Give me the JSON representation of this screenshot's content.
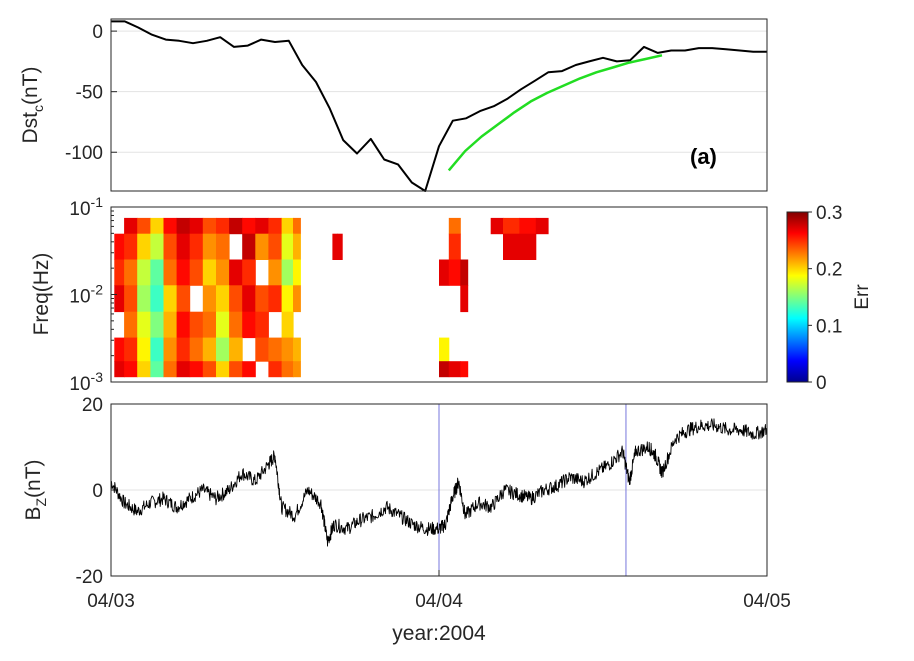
{
  "figure": {
    "xlabel": "year:2004",
    "annotation": "(a)"
  },
  "chart_data": [
    {
      "type": "line",
      "panel": "dst",
      "ylabel_main": "Dst",
      "ylabel_sub": "c",
      "ylabel_unit": "(nT)",
      "xlim": [
        0,
        2
      ],
      "ylim": [
        -132,
        10
      ],
      "yticks": [
        0,
        -50,
        -100
      ],
      "ytick_labels": [
        "0",
        "-50",
        "-100"
      ],
      "grid": true,
      "series": [
        {
          "name": "Dst_c",
          "color": "#000000",
          "x": [
            0.0,
            0.042,
            0.083,
            0.125,
            0.167,
            0.208,
            0.25,
            0.292,
            0.333,
            0.375,
            0.417,
            0.458,
            0.5,
            0.542,
            0.583,
            0.625,
            0.667,
            0.708,
            0.75,
            0.792,
            0.833,
            0.875,
            0.917,
            0.958,
            1.0,
            1.042,
            1.083,
            1.125,
            1.167,
            1.208,
            1.25,
            1.292,
            1.333,
            1.375,
            1.417,
            1.458,
            1.5,
            1.542,
            1.583,
            1.625,
            1.667,
            1.708,
            1.75,
            1.792,
            1.833,
            1.875,
            1.917,
            1.958,
            2.0
          ],
          "values": [
            8,
            8,
            3,
            -3,
            -7,
            -8,
            -10,
            -8,
            -5,
            -13,
            -12,
            -7,
            -9,
            -8,
            -28,
            -42,
            -64,
            -90,
            -101,
            -89,
            -106,
            -110,
            -125,
            -132,
            -95,
            -74,
            -72,
            -66,
            -62,
            -56,
            -48,
            -41,
            -34,
            -33,
            -28,
            -25,
            -22,
            -25,
            -24,
            -13,
            -18,
            -16,
            -16,
            -14,
            -14,
            -15,
            -16,
            -17,
            -17
          ]
        },
        {
          "name": "fit",
          "color": "#22dd22",
          "x": [
            1.03,
            1.08,
            1.13,
            1.18,
            1.23,
            1.28,
            1.33,
            1.38,
            1.43,
            1.48,
            1.53,
            1.58,
            1.63,
            1.68
          ],
          "values": [
            -115,
            -99,
            -87,
            -77,
            -67,
            -58,
            -51,
            -45,
            -39,
            -34,
            -30,
            -26,
            -23,
            -20
          ]
        }
      ]
    },
    {
      "type": "heatmap",
      "panel": "spectrum",
      "ylabel": "Freq(Hz)",
      "yscale": "log",
      "ylim": [
        0.001,
        0.1
      ],
      "ytick_base": "10",
      "ytick_exponents": [
        "-1",
        "-2",
        "-3"
      ],
      "colorbar": {
        "label": "Err",
        "range": [
          0,
          0.3
        ],
        "ticks": [
          "0",
          "0.1",
          "0.2",
          "0.3"
        ]
      },
      "y_levels": [
        0.07,
        0.035,
        0.018,
        0.009,
        0.0045,
        0.0023,
        0.0013
      ],
      "segments": [
        {
          "x": [
            0.02,
            0.06,
            0.1,
            0.14,
            0.18,
            0.22,
            0.26,
            0.3,
            0.34,
            0.38,
            0.42,
            0.46,
            0.5,
            0.54,
            0.57
          ],
          "values": [
            [
              null,
              0.27,
              0.24,
              0.2,
              0.26,
              0.28,
              0.27,
              0.24,
              0.25,
              0.28,
              0.26,
              0.27,
              0.25,
              0.2,
              0.23
            ],
            [
              0.26,
              0.25,
              0.2,
              0.17,
              0.24,
              0.27,
              0.25,
              0.22,
              0.23,
              null,
              0.28,
              0.22,
              0.24,
              0.18,
              0.21
            ],
            [
              0.25,
              0.23,
              0.17,
              0.14,
              0.23,
              0.26,
              0.24,
              0.2,
              0.22,
              0.27,
              0.25,
              null,
              0.22,
              0.16,
              0.19
            ],
            [
              0.27,
              0.24,
              0.16,
              0.13,
              0.2,
              0.24,
              null,
              0.22,
              0.2,
              0.24,
              0.27,
              0.24,
              0.25,
              0.19,
              0.22
            ],
            [
              null,
              0.23,
              0.18,
              0.15,
              0.21,
              0.26,
              0.24,
              0.23,
              0.18,
              0.23,
              0.26,
              0.25,
              null,
              0.2,
              null
            ],
            [
              0.26,
              0.25,
              0.19,
              0.13,
              0.22,
              0.25,
              0.23,
              0.21,
              0.16,
              0.21,
              null,
              0.24,
              0.23,
              0.22,
              0.21
            ],
            [
              0.27,
              0.26,
              0.2,
              0.14,
              0.23,
              0.27,
              0.26,
              0.24,
              0.2,
              0.24,
              0.26,
              null,
              0.25,
              0.23,
              0.22
            ]
          ]
        },
        {
          "x": [
            0.68,
            0.7
          ],
          "values": [
            [
              null,
              null
            ],
            [
              0.27,
              0.27
            ],
            [
              null,
              null
            ],
            [
              null,
              null
            ],
            [
              null,
              null
            ],
            [
              null,
              null
            ],
            [
              null,
              null
            ]
          ]
        },
        {
          "x": [
            1.01,
            1.05,
            1.08
          ],
          "values": [
            [
              null,
              0.23,
              null
            ],
            [
              null,
              0.25,
              null
            ],
            [
              0.27,
              0.26,
              0.28
            ],
            [
              null,
              null,
              0.27
            ],
            [
              null,
              null,
              null
            ],
            [
              0.19,
              null,
              null
            ],
            [
              0.28,
              0.27,
              0.26
            ]
          ]
        },
        {
          "x": [
            1.17,
            1.22,
            1.27,
            1.32
          ],
          "values": [
            [
              0.27,
              0.25,
              0.26,
              0.27
            ],
            [
              null,
              0.27,
              0.27,
              null
            ],
            [
              null,
              null,
              null,
              null
            ],
            [
              null,
              null,
              null,
              null
            ],
            [
              null,
              null,
              null,
              null
            ],
            [
              null,
              null,
              null,
              null
            ],
            [
              null,
              null,
              null,
              null
            ]
          ]
        }
      ]
    },
    {
      "type": "line",
      "panel": "bz",
      "ylabel_main": "B",
      "ylabel_sub": "Z",
      "ylabel_unit": "(nT)",
      "xlim": [
        0,
        2
      ],
      "ylim": [
        -20,
        20
      ],
      "yticks": [
        20,
        0,
        -20
      ],
      "ytick_labels": [
        "20",
        "0",
        "-20"
      ],
      "xtick_labels": [
        "04/03",
        "04/04",
        "04/05"
      ],
      "grid": true,
      "vlines": [
        1.0,
        1.57
      ],
      "series": [
        {
          "name": "Bz",
          "color": "#000000",
          "x": [
            0.0,
            0.04,
            0.08,
            0.12,
            0.16,
            0.2,
            0.24,
            0.28,
            0.32,
            0.36,
            0.4,
            0.44,
            0.48,
            0.5,
            0.52,
            0.56,
            0.6,
            0.64,
            0.66,
            0.68,
            0.72,
            0.76,
            0.8,
            0.84,
            0.88,
            0.92,
            0.96,
            1.0,
            1.02,
            1.04,
            1.06,
            1.08,
            1.12,
            1.16,
            1.2,
            1.24,
            1.28,
            1.32,
            1.36,
            1.4,
            1.44,
            1.48,
            1.52,
            1.56,
            1.58,
            1.6,
            1.64,
            1.66,
            1.68,
            1.72,
            1.76,
            1.8,
            1.84,
            1.88,
            1.92,
            1.96,
            2.0
          ],
          "values": [
            2,
            -3,
            -5,
            -3,
            -2,
            -4,
            -2,
            0,
            -2,
            0,
            4,
            2,
            6,
            8,
            -4,
            -6,
            0,
            -3,
            -12,
            -8,
            -9,
            -7,
            -6,
            -4,
            -6,
            -8,
            -9,
            -9,
            -8,
            -2,
            2,
            -6,
            -3,
            -4,
            0,
            -1,
            -2,
            0,
            1,
            3,
            2,
            4,
            6,
            9,
            2,
            9,
            10,
            8,
            4,
            12,
            14,
            15,
            15,
            14,
            14,
            13,
            14
          ]
        }
      ]
    }
  ]
}
